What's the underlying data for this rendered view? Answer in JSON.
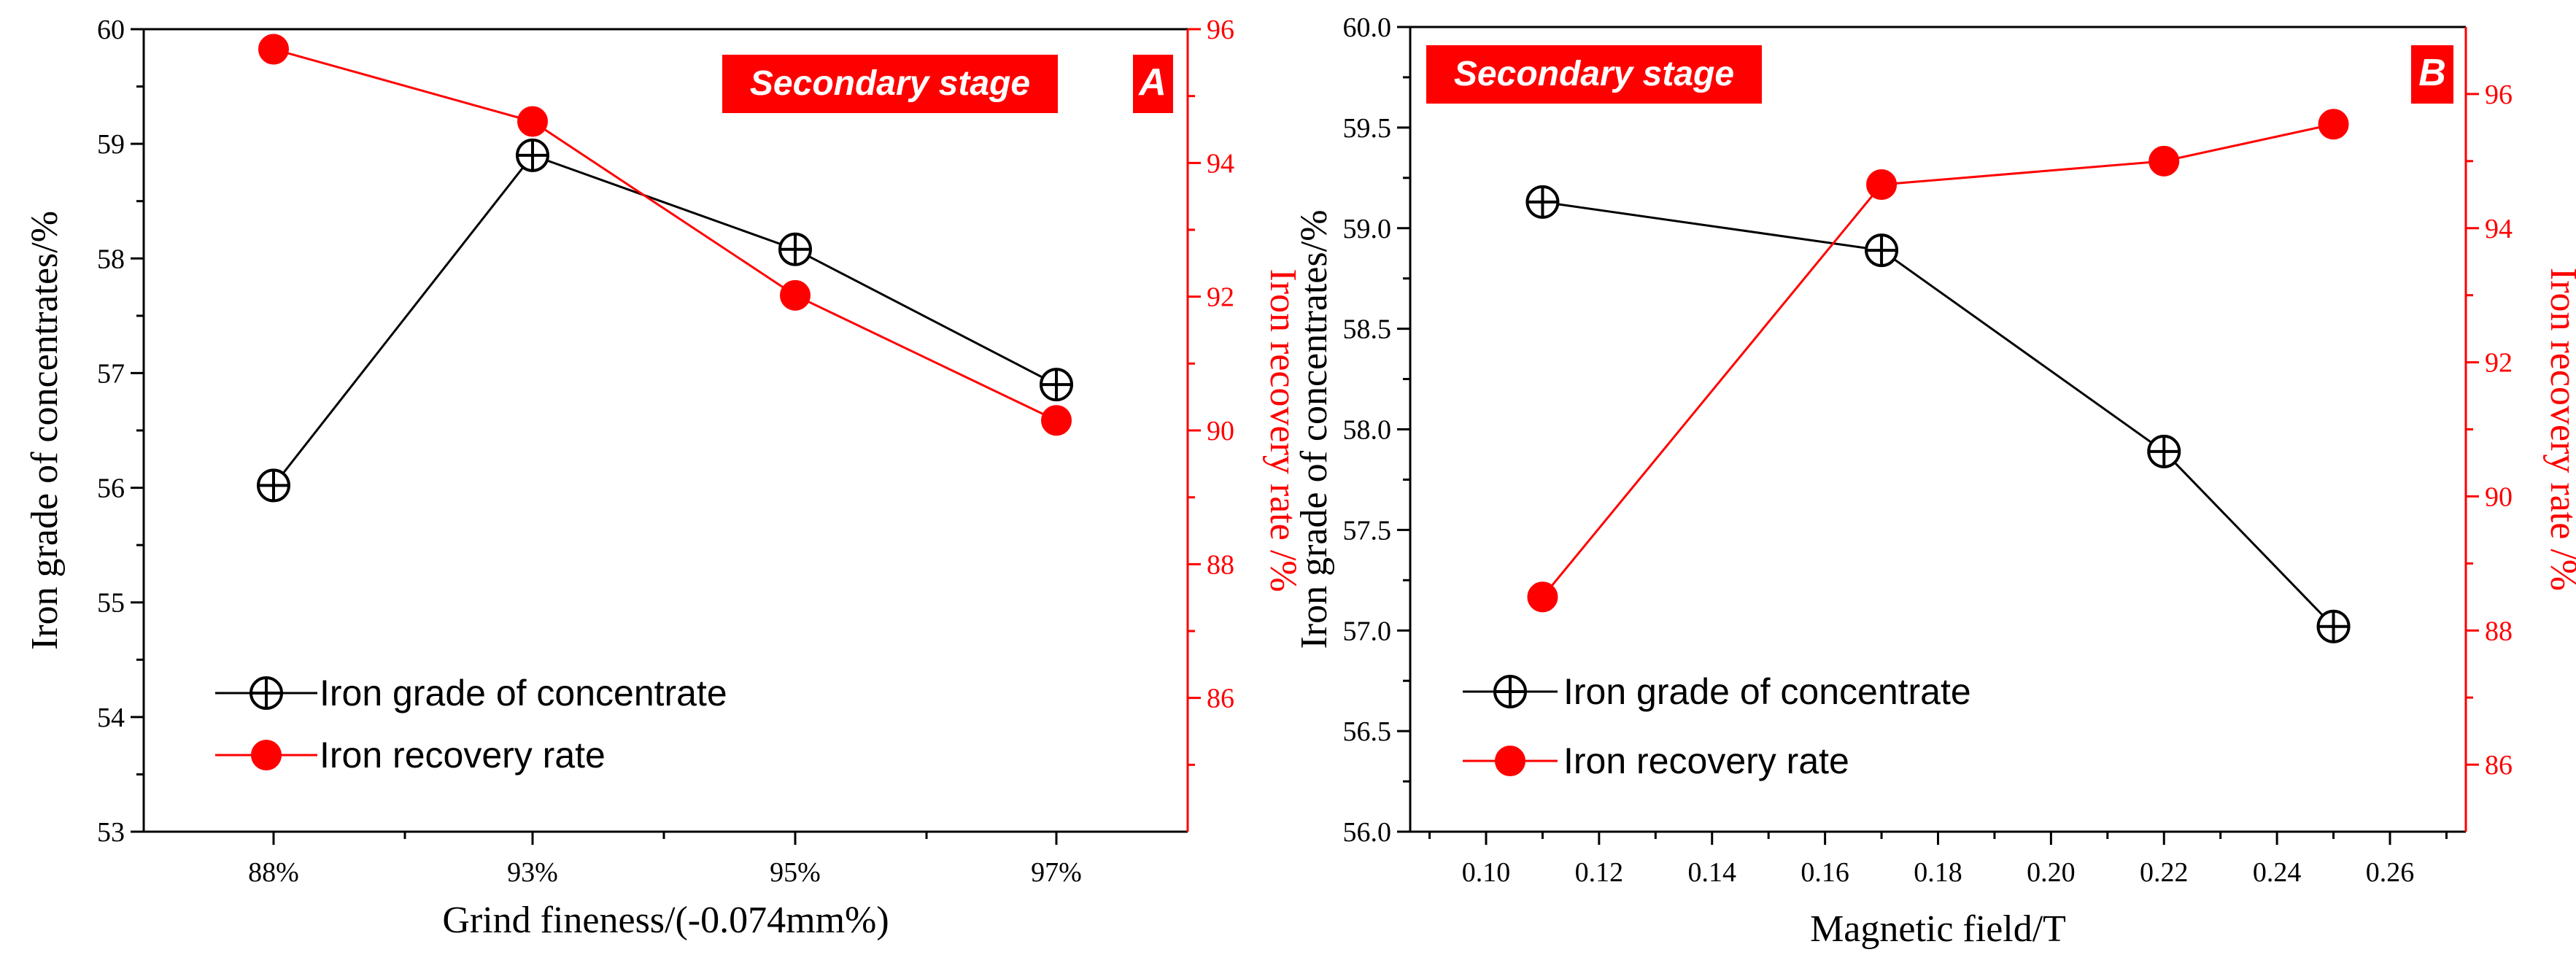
{
  "chart_data": [
    {
      "type": "line",
      "panel_label": "A",
      "stage_label": "Secondary stage",
      "xlabel": "Grind fineness/(-0.074mm%)",
      "ylabel_left": "Iron grade of concentrates/%",
      "ylabel_right": "Iron recovery rate /%",
      "categories": [
        "88%",
        "93%",
        "95%",
        "97%"
      ],
      "ylim_left": [
        53,
        60
      ],
      "yticks_left": [
        "53",
        "54",
        "55",
        "56",
        "57",
        "58",
        "59",
        "60"
      ],
      "ylim_right": [
        84,
        96
      ],
      "yticks_right": [
        "86",
        "88",
        "90",
        "92",
        "94",
        "96"
      ],
      "legend_position": "bottom-left",
      "series": [
        {
          "name": "Iron grade of concentrate",
          "axis": "left",
          "color": "#000000",
          "marker": "circle-plus",
          "values": [
            56.02,
            58.9,
            58.08,
            56.9
          ]
        },
        {
          "name": "Iron recovery rate",
          "axis": "right",
          "color": "#ff0000",
          "marker": "filled-circle",
          "values": [
            95.7,
            94.62,
            92.02,
            90.15
          ]
        }
      ]
    },
    {
      "type": "line",
      "panel_label": "B",
      "stage_label": "Secondary stage",
      "xlabel": "Magnetic field/T",
      "ylabel_left": "Iron grade of concentrates/%",
      "ylabel_right": "Iron recovery rate /%",
      "x": [
        0.11,
        0.17,
        0.22,
        0.25
      ],
      "xlim": [
        0.09,
        0.27
      ],
      "xticks": [
        "0.10",
        "0.12",
        "0.14",
        "0.16",
        "0.18",
        "0.20",
        "0.22",
        "0.24",
        "0.26"
      ],
      "ylim_left": [
        56.0,
        60.0
      ],
      "yticks_left": [
        "56.0",
        "56.5",
        "57.0",
        "57.5",
        "58.0",
        "58.5",
        "59.0",
        "59.5",
        "60.0"
      ],
      "ylim_right": [
        85,
        97
      ],
      "yticks_right": [
        "86",
        "88",
        "90",
        "92",
        "94",
        "96"
      ],
      "legend_position": "bottom-left",
      "series": [
        {
          "name": "Iron grade of concentrate",
          "axis": "left",
          "color": "#000000",
          "marker": "circle-plus",
          "values": [
            59.13,
            58.89,
            57.89,
            57.02
          ]
        },
        {
          "name": "Iron recovery rate",
          "axis": "right",
          "color": "#ff0000",
          "marker": "filled-circle",
          "values": [
            88.5,
            94.65,
            95.0,
            95.55
          ]
        }
      ]
    }
  ]
}
